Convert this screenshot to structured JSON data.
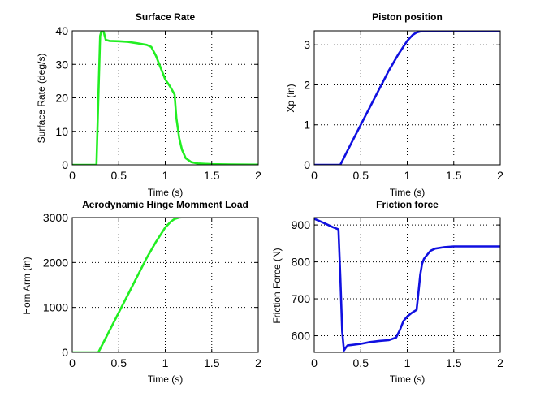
{
  "chart_data": [
    {
      "type": "line",
      "title": "Surface Rate",
      "xlabel": "Time (s)",
      "ylabel": "Surface Rate (deg/s)",
      "xlim": [
        0,
        2
      ],
      "ylim": [
        0,
        40
      ],
      "xticks": [
        0,
        0.5,
        1,
        1.5,
        2
      ],
      "yticks": [
        0,
        10,
        20,
        30,
        40
      ],
      "xtick_labels": [
        "0",
        "0.5",
        "1",
        "1.5",
        "2"
      ],
      "ytick_labels": [
        "0",
        "10",
        "20",
        "30",
        "40"
      ],
      "grid": true,
      "color": "#22ee22",
      "series": [
        {
          "x": [
            0,
            0.26,
            0.28,
            0.3,
            0.32,
            0.34,
            0.36,
            0.4,
            0.5,
            0.6,
            0.7,
            0.8,
            0.85,
            0.9,
            0.95,
            1.0,
            1.05,
            1.1,
            1.12,
            1.15,
            1.18,
            1.22,
            1.28,
            1.35,
            1.5,
            1.7,
            2.0
          ],
          "y": [
            0,
            0,
            20,
            38.5,
            40.5,
            39.5,
            37.3,
            37.0,
            36.9,
            36.7,
            36.3,
            35.8,
            35.2,
            32.5,
            29.0,
            25.5,
            23.5,
            21.0,
            14.0,
            8.0,
            4.5,
            2.0,
            0.8,
            0.4,
            0.2,
            0.1,
            0.05
          ]
        }
      ]
    },
    {
      "type": "line",
      "title": "Piston position",
      "xlabel": "Time (s)",
      "ylabel": "Xp (in)",
      "xlim": [
        0,
        2
      ],
      "ylim": [
        0,
        3.35
      ],
      "xticks": [
        0,
        0.5,
        1,
        1.5,
        2
      ],
      "yticks": [
        0,
        1,
        2,
        3
      ],
      "xtick_labels": [
        "0",
        "0.5",
        "1",
        "1.5",
        "2"
      ],
      "ytick_labels": [
        "0",
        "1",
        "2",
        "3"
      ],
      "grid": true,
      "color": "#1010e0",
      "series": [
        {
          "x": [
            0,
            0.28,
            0.4,
            0.6,
            0.8,
            0.9,
            1.0,
            1.06,
            1.1,
            1.15,
            1.2,
            1.5,
            2.0
          ],
          "y": [
            0,
            0,
            0.55,
            1.45,
            2.35,
            2.75,
            3.1,
            3.25,
            3.31,
            3.34,
            3.35,
            3.35,
            3.35
          ]
        }
      ]
    },
    {
      "type": "line",
      "title": "Aerodynamic Hinge Momment Load",
      "xlabel": "Time (s)",
      "ylabel": "Horn Arm (in)",
      "xlim": [
        0,
        2
      ],
      "ylim": [
        0,
        3000
      ],
      "xticks": [
        0,
        0.5,
        1,
        1.5,
        2
      ],
      "yticks": [
        0,
        1000,
        2000,
        3000
      ],
      "xtick_labels": [
        "0",
        "0.5",
        "1",
        "1.5",
        "2"
      ],
      "ytick_labels": [
        "0",
        "1000",
        "2000",
        "3000"
      ],
      "grid": true,
      "color": "#22ee22",
      "series": [
        {
          "x": [
            0,
            0.28,
            0.4,
            0.6,
            0.8,
            0.9,
            1.0,
            1.06,
            1.1,
            1.15,
            1.2,
            1.5,
            2.0
          ],
          "y": [
            0,
            0,
            480,
            1290,
            2100,
            2460,
            2780,
            2910,
            2970,
            3000,
            3010,
            3010,
            3010
          ]
        }
      ]
    },
    {
      "type": "line",
      "title": "Friction force",
      "xlabel": "Time (s)",
      "ylabel": "Friction Force (N)",
      "xlim": [
        0,
        2
      ],
      "ylim": [
        555,
        920
      ],
      "xticks": [
        0,
        0.5,
        1,
        1.5,
        2
      ],
      "yticks": [
        600,
        700,
        800,
        900
      ],
      "xtick_labels": [
        "0",
        "0.5",
        "1",
        "1.5",
        "2"
      ],
      "ytick_labels": [
        "600",
        "700",
        "800",
        "900"
      ],
      "grid": true,
      "color": "#1010e0",
      "series": [
        {
          "x": [
            0,
            0.1,
            0.2,
            0.26,
            0.28,
            0.3,
            0.32,
            0.34,
            0.36,
            0.4,
            0.5,
            0.6,
            0.7,
            0.8,
            0.88,
            0.92,
            0.96,
            1.0,
            1.05,
            1.1,
            1.12,
            1.14,
            1.16,
            1.18,
            1.2,
            1.25,
            1.3,
            1.4,
            1.5,
            2.0
          ],
          "y": [
            917,
            906,
            894,
            888,
            760,
            612,
            560,
            568,
            574,
            575,
            578,
            583,
            586,
            588,
            595,
            615,
            640,
            652,
            662,
            670,
            715,
            765,
            795,
            808,
            815,
            830,
            836,
            840,
            842,
            842
          ]
        }
      ]
    }
  ]
}
